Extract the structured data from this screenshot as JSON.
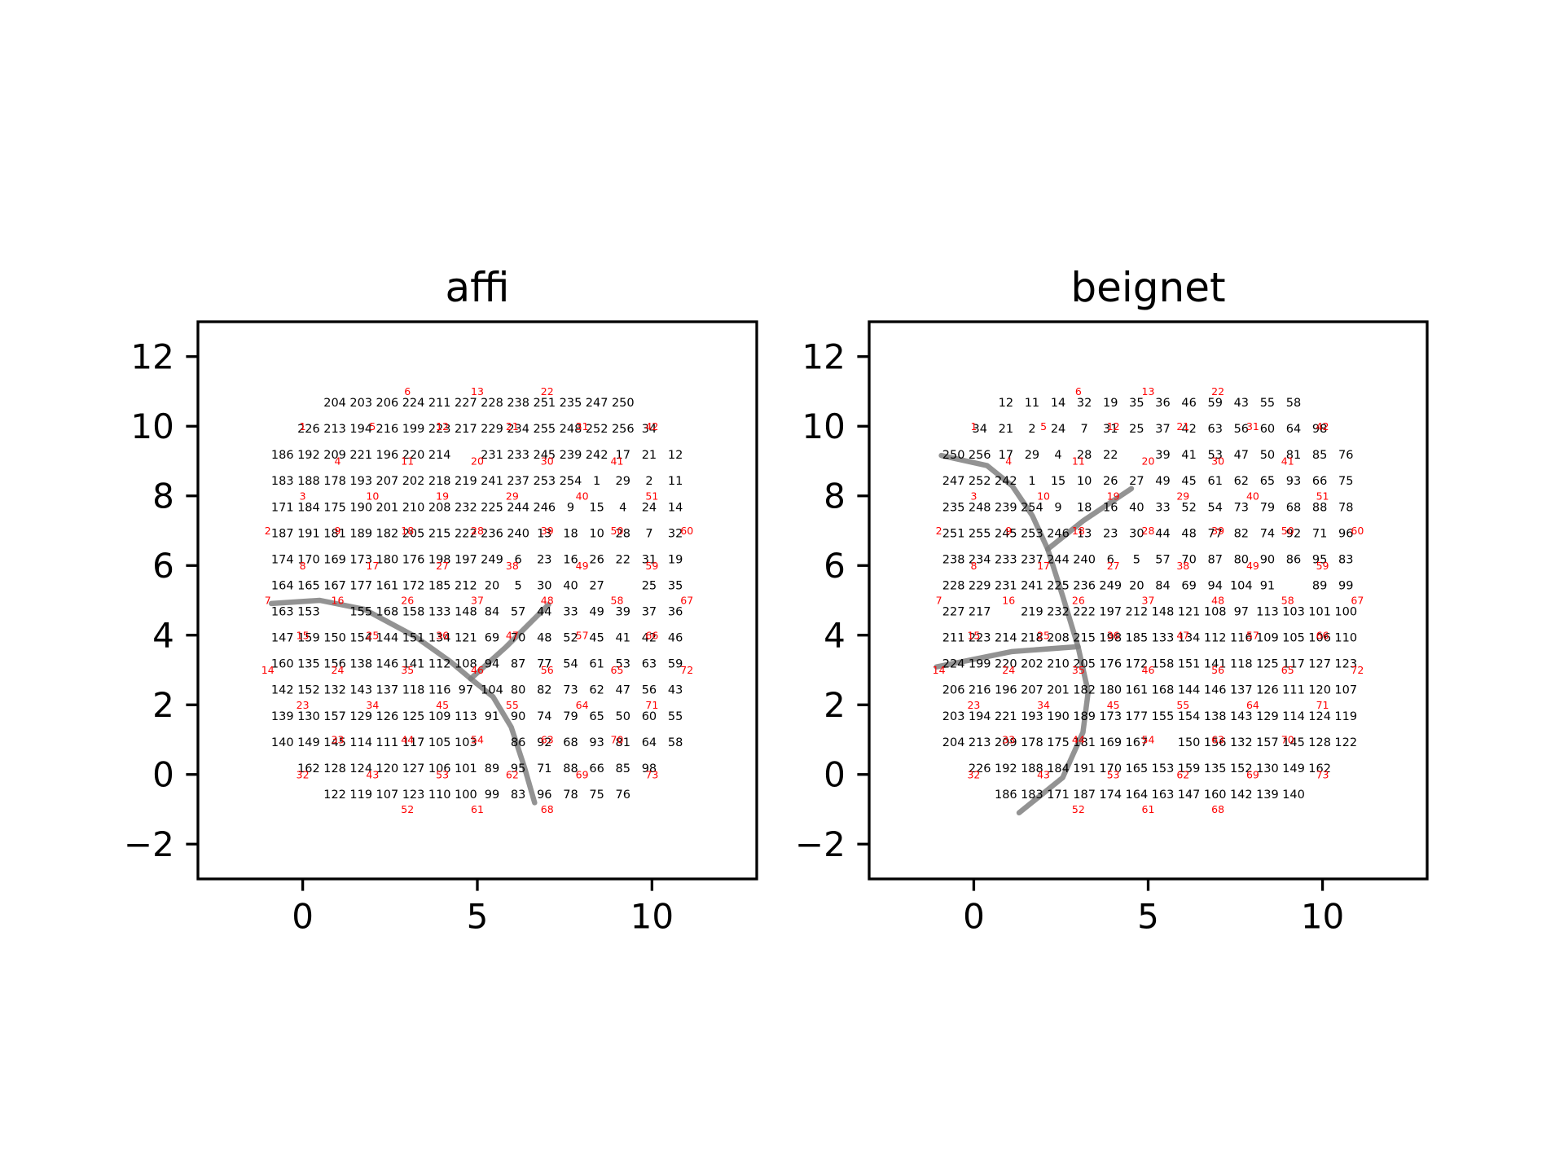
{
  "chart_data": [
    {
      "type": "scatter",
      "title": "affi",
      "xlim": [
        -3,
        13
      ],
      "ylim": [
        -3,
        13
      ],
      "xticks": [
        0,
        5,
        10
      ],
      "yticks": [
        {
          "value": -2,
          "label": "−2"
        },
        0,
        2,
        4,
        6,
        8,
        10,
        12
      ],
      "cells": {
        "color": "black",
        "x": [
          -0.58,
          0.17,
          0.92,
          1.67,
          2.42,
          3.17,
          3.92,
          4.67,
          5.42,
          6.17,
          6.92,
          7.67,
          8.42,
          9.17,
          9.92,
          10.67
        ],
        "y": [
          10.66,
          9.91,
          9.16,
          8.41,
          7.66,
          6.91,
          6.16,
          5.41,
          4.66,
          3.91,
          3.16,
          2.41,
          1.66,
          0.91,
          0.16,
          -0.59
        ],
        "labels": [
          [
            null,
            null,
            204,
            203,
            206,
            224,
            211,
            227,
            228,
            238,
            251,
            235,
            247,
            250,
            null,
            null
          ],
          [
            null,
            226,
            213,
            194,
            216,
            199,
            223,
            217,
            229,
            234,
            255,
            248,
            252,
            256,
            34,
            null
          ],
          [
            186,
            192,
            209,
            221,
            196,
            220,
            214,
            null,
            231,
            233,
            245,
            239,
            242,
            17,
            21,
            12
          ],
          [
            183,
            188,
            178,
            193,
            207,
            202,
            218,
            219,
            241,
            237,
            253,
            254,
            1,
            29,
            2,
            11
          ],
          [
            171,
            184,
            175,
            190,
            201,
            210,
            208,
            232,
            225,
            244,
            246,
            9,
            15,
            4,
            24,
            14
          ],
          [
            187,
            191,
            181,
            189,
            182,
            205,
            215,
            222,
            236,
            240,
            13,
            18,
            10,
            28,
            7,
            32
          ],
          [
            174,
            170,
            169,
            173,
            180,
            176,
            198,
            197,
            249,
            6,
            23,
            16,
            26,
            22,
            31,
            19
          ],
          [
            164,
            165,
            167,
            177,
            161,
            172,
            185,
            212,
            20,
            5,
            30,
            40,
            27,
            null,
            25,
            35
          ],
          [
            163,
            153,
            null,
            155,
            168,
            158,
            133,
            148,
            84,
            57,
            44,
            33,
            49,
            39,
            37,
            36
          ],
          [
            147,
            159,
            150,
            154,
            144,
            151,
            134,
            121,
            69,
            70,
            48,
            52,
            45,
            41,
            42,
            46
          ],
          [
            160,
            135,
            156,
            138,
            146,
            141,
            112,
            108,
            94,
            87,
            77,
            54,
            61,
            53,
            63,
            59
          ],
          [
            142,
            152,
            132,
            143,
            137,
            118,
            116,
            97,
            104,
            80,
            82,
            73,
            62,
            47,
            56,
            43
          ],
          [
            139,
            130,
            157,
            129,
            126,
            125,
            109,
            113,
            91,
            90,
            74,
            79,
            65,
            50,
            60,
            55
          ],
          [
            140,
            149,
            145,
            114,
            111,
            117,
            105,
            103,
            null,
            86,
            92,
            68,
            93,
            81,
            64,
            58
          ],
          [
            null,
            162,
            128,
            124,
            120,
            127,
            106,
            101,
            89,
            95,
            71,
            88,
            66,
            85,
            98,
            null
          ],
          [
            null,
            null,
            122,
            119,
            107,
            123,
            110,
            100,
            99,
            83,
            96,
            78,
            75,
            76,
            null,
            null
          ]
        ]
      },
      "nodes": {
        "color": "red",
        "x": [
          0,
          -1,
          0,
          1,
          2,
          3,
          -1,
          0,
          1,
          2,
          3,
          4,
          5,
          -1,
          0,
          1,
          2,
          3,
          4,
          5,
          6,
          7,
          0,
          1,
          2,
          3,
          4,
          5,
          6,
          7,
          8,
          0,
          1,
          2,
          3,
          4,
          5,
          6,
          7,
          8,
          9,
          10,
          2,
          3,
          4,
          5,
          6,
          7,
          8,
          9,
          10,
          3,
          4,
          5,
          6,
          7,
          8,
          9,
          10,
          11,
          5,
          6,
          7,
          8,
          9,
          10,
          11,
          7,
          8,
          9,
          10,
          11,
          10
        ],
        "y": [
          10,
          7,
          8,
          9,
          10,
          11,
          5,
          6,
          7,
          8,
          9,
          10,
          11,
          3,
          4,
          5,
          6,
          7,
          8,
          9,
          10,
          11,
          2,
          3,
          4,
          5,
          6,
          7,
          8,
          9,
          10,
          0,
          1,
          2,
          3,
          4,
          5,
          6,
          7,
          8,
          9,
          10,
          0,
          1,
          2,
          3,
          4,
          5,
          6,
          7,
          8,
          -1,
          0,
          1,
          2,
          3,
          4,
          5,
          6,
          7,
          -1,
          0,
          1,
          2,
          3,
          4,
          5,
          -1,
          0,
          1,
          2,
          3,
          0
        ],
        "labels": [
          1,
          2,
          3,
          4,
          5,
          6,
          7,
          8,
          9,
          10,
          11,
          12,
          13,
          14,
          15,
          16,
          17,
          18,
          19,
          20,
          21,
          22,
          23,
          24,
          25,
          26,
          27,
          28,
          29,
          30,
          31,
          32,
          33,
          34,
          35,
          36,
          37,
          38,
          39,
          40,
          41,
          42,
          43,
          44,
          45,
          46,
          47,
          48,
          49,
          50,
          51,
          52,
          53,
          54,
          55,
          56,
          57,
          58,
          59,
          60,
          61,
          62,
          63,
          64,
          65,
          66,
          67,
          68,
          69,
          70,
          71,
          72,
          73
        ]
      },
      "curve_color": "gray",
      "curves": [
        {
          "x": [
            -0.9,
            0.49,
            1.77,
            3.22,
            4.23,
            4.81
          ],
          "y": [
            4.91,
            5.0,
            4.74,
            3.96,
            3.24,
            2.75
          ]
        },
        {
          "x": [
            4.81,
            5.83,
            7.04
          ],
          "y": [
            2.75,
            3.67,
            4.88
          ]
        },
        {
          "x": [
            4.81,
            5.45,
            5.97,
            6.35,
            6.64
          ],
          "y": [
            2.75,
            2.23,
            1.36,
            0.2,
            -0.81
          ]
        }
      ]
    },
    {
      "type": "scatter",
      "title": "beignet",
      "xlim": [
        -3,
        13
      ],
      "ylim": [
        -3,
        13
      ],
      "xticks": [
        0,
        5,
        10
      ],
      "yticks": [
        {
          "value": -2,
          "label": "−2"
        },
        0,
        2,
        4,
        6,
        8,
        10,
        12
      ],
      "cells": {
        "color": "black",
        "x": [
          -0.58,
          0.17,
          0.92,
          1.67,
          2.42,
          3.17,
          3.92,
          4.67,
          5.42,
          6.17,
          6.92,
          7.67,
          8.42,
          9.17,
          9.92,
          10.67
        ],
        "y": [
          10.66,
          9.91,
          9.16,
          8.41,
          7.66,
          6.91,
          6.16,
          5.41,
          4.66,
          3.91,
          3.16,
          2.41,
          1.66,
          0.91,
          0.16,
          -0.59
        ],
        "labels": [
          [
            null,
            null,
            12,
            11,
            14,
            32,
            19,
            35,
            36,
            46,
            59,
            43,
            55,
            58,
            null,
            null
          ],
          [
            null,
            34,
            21,
            2,
            24,
            7,
            31,
            25,
            37,
            42,
            63,
            56,
            60,
            64,
            98,
            null
          ],
          [
            250,
            256,
            17,
            29,
            4,
            28,
            22,
            null,
            39,
            41,
            53,
            47,
            50,
            81,
            85,
            76
          ],
          [
            247,
            252,
            242,
            1,
            15,
            10,
            26,
            27,
            49,
            45,
            61,
            62,
            65,
            93,
            66,
            75
          ],
          [
            235,
            248,
            239,
            254,
            9,
            18,
            16,
            40,
            33,
            52,
            54,
            73,
            79,
            68,
            88,
            78
          ],
          [
            251,
            255,
            245,
            253,
            246,
            13,
            23,
            30,
            44,
            48,
            77,
            82,
            74,
            92,
            71,
            96
          ],
          [
            238,
            234,
            233,
            237,
            244,
            240,
            6,
            5,
            57,
            70,
            87,
            80,
            90,
            86,
            95,
            83
          ],
          [
            228,
            229,
            231,
            241,
            225,
            236,
            249,
            20,
            84,
            69,
            94,
            104,
            91,
            null,
            89,
            99
          ],
          [
            227,
            217,
            null,
            219,
            232,
            222,
            197,
            212,
            148,
            121,
            108,
            97,
            113,
            103,
            101,
            100
          ],
          [
            211,
            223,
            214,
            218,
            208,
            215,
            198,
            185,
            133,
            134,
            112,
            116,
            109,
            105,
            106,
            110
          ],
          [
            224,
            199,
            220,
            202,
            210,
            205,
            176,
            172,
            158,
            151,
            141,
            118,
            125,
            117,
            127,
            123
          ],
          [
            206,
            216,
            196,
            207,
            201,
            182,
            180,
            161,
            168,
            144,
            146,
            137,
            126,
            111,
            120,
            107
          ],
          [
            203,
            194,
            221,
            193,
            190,
            189,
            173,
            177,
            155,
            154,
            138,
            143,
            129,
            114,
            124,
            119
          ],
          [
            204,
            213,
            209,
            178,
            175,
            181,
            169,
            167,
            null,
            150,
            156,
            132,
            157,
            145,
            128,
            122
          ],
          [
            null,
            226,
            192,
            188,
            184,
            191,
            170,
            165,
            153,
            159,
            135,
            152,
            130,
            149,
            162,
            null
          ],
          [
            null,
            null,
            186,
            183,
            171,
            187,
            174,
            164,
            163,
            147,
            160,
            142,
            139,
            140,
            null,
            null
          ]
        ]
      },
      "nodes": {
        "color": "red",
        "x": [
          0,
          -1,
          0,
          1,
          2,
          3,
          -1,
          0,
          1,
          2,
          3,
          4,
          5,
          -1,
          0,
          1,
          2,
          3,
          4,
          5,
          6,
          7,
          0,
          1,
          2,
          3,
          4,
          5,
          6,
          7,
          8,
          0,
          1,
          2,
          3,
          4,
          5,
          6,
          7,
          8,
          9,
          10,
          2,
          3,
          4,
          5,
          6,
          7,
          8,
          9,
          10,
          3,
          4,
          5,
          6,
          7,
          8,
          9,
          10,
          11,
          5,
          6,
          7,
          8,
          9,
          10,
          11,
          7,
          8,
          9,
          10,
          11,
          10
        ],
        "y": [
          10,
          7,
          8,
          9,
          10,
          11,
          5,
          6,
          7,
          8,
          9,
          10,
          11,
          3,
          4,
          5,
          6,
          7,
          8,
          9,
          10,
          11,
          2,
          3,
          4,
          5,
          6,
          7,
          8,
          9,
          10,
          0,
          1,
          2,
          3,
          4,
          5,
          6,
          7,
          8,
          9,
          10,
          0,
          1,
          2,
          3,
          4,
          5,
          6,
          7,
          8,
          -1,
          0,
          1,
          2,
          3,
          4,
          5,
          6,
          7,
          -1,
          0,
          1,
          2,
          3,
          4,
          5,
          -1,
          0,
          1,
          2,
          3,
          0
        ],
        "labels": [
          1,
          2,
          3,
          4,
          5,
          6,
          7,
          8,
          9,
          10,
          11,
          12,
          13,
          14,
          15,
          16,
          17,
          18,
          19,
          20,
          21,
          22,
          23,
          24,
          25,
          26,
          27,
          28,
          29,
          30,
          31,
          32,
          33,
          34,
          35,
          36,
          37,
          38,
          39,
          40,
          41,
          42,
          43,
          44,
          45,
          46,
          47,
          48,
          49,
          50,
          51,
          52,
          53,
          54,
          55,
          56,
          57,
          58,
          59,
          60,
          61,
          62,
          63,
          64,
          65,
          66,
          67,
          68,
          69,
          70,
          71,
          72,
          73
        ]
      },
      "curve_color": "gray",
      "curves": [
        {
          "x": [
            -0.93,
            0.38,
            1.1,
            1.68,
            2.12
          ],
          "y": [
            9.16,
            8.87,
            8.29,
            7.43,
            6.47
          ]
        },
        {
          "x": [
            2.12,
            3.13,
            4.52
          ],
          "y": [
            6.47,
            7.28,
            8.21
          ]
        },
        {
          "x": [
            2.12,
            2.55,
            2.99,
            3.28,
            3.13,
            2.55,
            1.3
          ],
          "y": [
            6.47,
            5.12,
            3.67,
            2.37,
            1.21,
            -0.09,
            -1.1
          ]
        },
        {
          "x": [
            2.99,
            1.1,
            -1.07
          ],
          "y": [
            3.67,
            3.53,
            3.09
          ]
        }
      ]
    }
  ]
}
